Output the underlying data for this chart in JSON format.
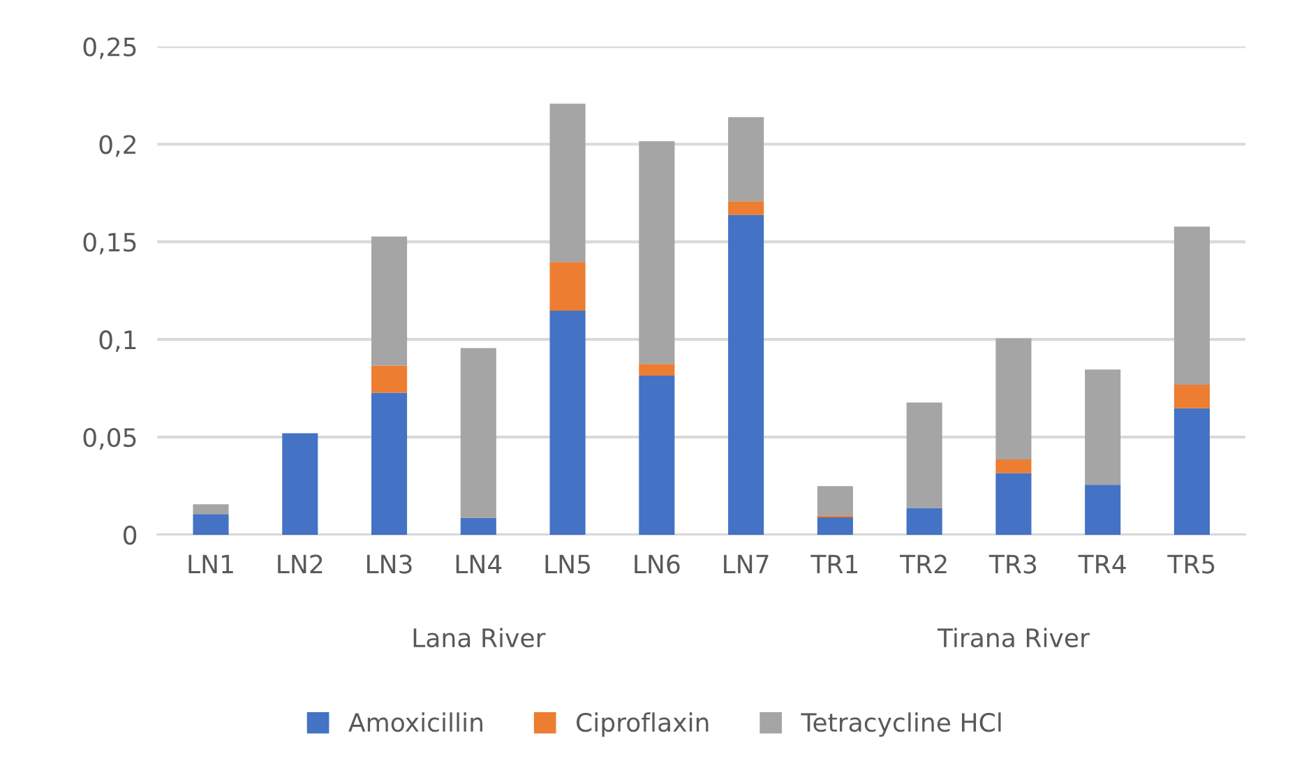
{
  "chart_data": {
    "type": "bar",
    "stacked": true,
    "categories": [
      "LN1",
      "LN2",
      "LN3",
      "LN4",
      "LN5",
      "LN6",
      "LN7",
      "TR1",
      "TR2",
      "TR3",
      "TR4",
      "TR5"
    ],
    "series": [
      {
        "name": "Amoxicillin",
        "color": "#4472c4",
        "values": [
          0.0106,
          0.052,
          0.0727,
          0.0086,
          0.1147,
          0.0815,
          0.1638,
          0.0089,
          0.0137,
          0.0316,
          0.0256,
          0.0648
        ]
      },
      {
        "name": "Ciproflaxin",
        "color": "#ed7d31",
        "values": [
          0,
          0,
          0.014,
          0,
          0.025,
          0.006,
          0.007,
          0.001,
          0,
          0.007,
          0,
          0.012
        ]
      },
      {
        "name": "Tetracycline HCl",
        "color": "#a5a5a5",
        "values": [
          0.005,
          0,
          0.066,
          0.087,
          0.081,
          0.114,
          0.043,
          0.015,
          0.054,
          0.062,
          0.059,
          0.081
        ]
      }
    ],
    "ylim": [
      0,
      0.25
    ],
    "yticks": [
      {
        "value": 0,
        "label": "0"
      },
      {
        "value": 0.05,
        "label": "0,05"
      },
      {
        "value": 0.1,
        "label": "0,1"
      },
      {
        "value": 0.15,
        "label": "0,15"
      },
      {
        "value": 0.2,
        "label": "0,2"
      },
      {
        "value": 0.25,
        "label": "0,25"
      }
    ],
    "annotations": [
      "Lana River",
      "Tirana River"
    ],
    "grid": "y",
    "legend": "bottom"
  }
}
